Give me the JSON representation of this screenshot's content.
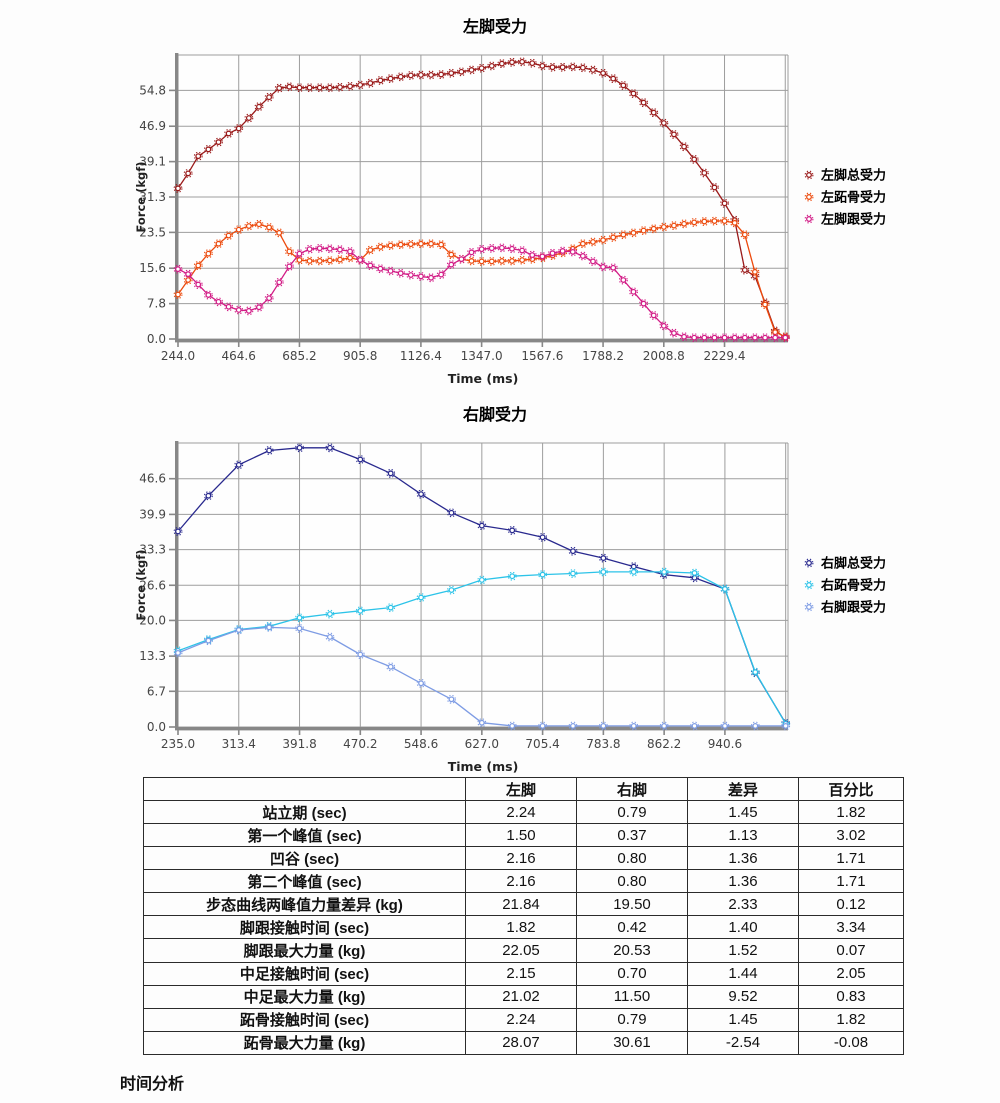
{
  "page": {
    "caption": "时间分析"
  },
  "chart_data": [
    {
      "type": "line",
      "title": "左脚受力",
      "xlabel": "Time (ms)",
      "ylabel": "Force (kgf)",
      "legend_position": "right",
      "grid": true,
      "x_start": 244.0,
      "x_step": 36.77,
      "x_max": 2460,
      "y_max": 62.6,
      "x_tick_labels": [
        "244.0",
        "464.6",
        "685.2",
        "905.8",
        "1126.4",
        "1347.0",
        "1567.6",
        "1788.2",
        "2008.8",
        "2229.4"
      ],
      "x_tick_values": [
        244.0,
        464.6,
        685.2,
        905.8,
        1126.4,
        1347.0,
        1567.6,
        1788.2,
        2008.8,
        2229.4
      ],
      "y_tick_labels": [
        "0.0",
        "7.8",
        "15.6",
        "23.5",
        "31.3",
        "39.1",
        "46.9",
        "54.8"
      ],
      "y_tick_values": [
        0.0,
        7.8,
        15.6,
        23.5,
        31.3,
        39.1,
        46.9,
        54.8
      ],
      "series": [
        {
          "name": "左脚总受力",
          "color": "#9a1a1a",
          "values": [
            33.2,
            36.5,
            40.3,
            41.8,
            43.4,
            45.3,
            46.4,
            48.7,
            51.2,
            53.3,
            55.3,
            55.6,
            55.4,
            55.4,
            55.4,
            55.4,
            55.5,
            55.7,
            56.0,
            56.4,
            57.0,
            57.4,
            57.8,
            58.1,
            58.2,
            58.2,
            58.3,
            58.6,
            58.9,
            59.3,
            59.7,
            60.2,
            60.7,
            61.0,
            61.1,
            60.8,
            60.2,
            59.9,
            59.9,
            60.0,
            59.8,
            59.3,
            58.6,
            57.4,
            55.9,
            54.1,
            52.1,
            49.9,
            47.6,
            45.1,
            42.4,
            39.6,
            36.6,
            33.4,
            29.9,
            26.2,
            15.2,
            13.9,
            8.0,
            1.8,
            0.3
          ]
        },
        {
          "name": "左跖骨受力",
          "color": "#ec4a0d",
          "values": [
            9.8,
            13.0,
            16.2,
            18.8,
            21.0,
            22.8,
            24.1,
            24.9,
            25.3,
            24.6,
            23.4,
            19.3,
            17.4,
            17.2,
            17.2,
            17.3,
            17.5,
            17.9,
            17.4,
            19.6,
            20.3,
            20.6,
            20.8,
            20.9,
            21.0,
            21.0,
            20.8,
            18.6,
            17.6,
            17.2,
            17.1,
            17.1,
            17.2,
            17.2,
            17.4,
            17.6,
            17.9,
            18.4,
            19.0,
            19.9,
            21.0,
            21.4,
            21.8,
            22.4,
            23.0,
            23.4,
            23.9,
            24.3,
            24.7,
            25.0,
            25.4,
            25.7,
            25.9,
            26.0,
            26.0,
            25.6,
            23.0,
            14.8,
            7.6,
            1.5,
            0.5
          ]
        },
        {
          "name": "左脚跟受力",
          "color": "#d21c86",
          "values": [
            15.4,
            14.3,
            12.0,
            9.7,
            8.2,
            7.1,
            6.4,
            6.2,
            7.0,
            9.0,
            12.5,
            16.0,
            18.8,
            19.8,
            20.0,
            19.9,
            19.7,
            19.3,
            17.4,
            16.2,
            15.5,
            15.0,
            14.5,
            14.1,
            13.8,
            13.5,
            14.2,
            16.4,
            17.6,
            19.1,
            19.8,
            20.0,
            20.1,
            19.9,
            19.5,
            18.5,
            18.2,
            18.9,
            19.4,
            19.2,
            18.3,
            17.1,
            15.9,
            15.7,
            13.0,
            10.4,
            7.8,
            5.2,
            2.9,
            1.3,
            0.5,
            0.3,
            0.3,
            0.3,
            0.3,
            0.3,
            0.3,
            0.3,
            0.3,
            0.3,
            0.3
          ]
        }
      ]
    },
    {
      "type": "line",
      "title": "右脚受力",
      "xlabel": "Time (ms)",
      "ylabel": "Force (kgf)",
      "legend_position": "right",
      "grid": true,
      "x_start": 235.0,
      "x_step": 39.2,
      "x_max": 1022,
      "y_max": 53.3,
      "x_tick_labels": [
        "235.0",
        "313.4",
        "391.8",
        "470.2",
        "548.6",
        "627.0",
        "705.4",
        "783.8",
        "862.2",
        "940.6"
      ],
      "x_tick_values": [
        235.0,
        313.4,
        391.8,
        470.2,
        548.6,
        627.0,
        705.4,
        783.8,
        862.2,
        940.6
      ],
      "y_tick_labels": [
        "0.0",
        "6.7",
        "13.3",
        "20.0",
        "26.6",
        "33.3",
        "39.9",
        "46.6"
      ],
      "y_tick_values": [
        0.0,
        6.7,
        13.3,
        20.0,
        26.6,
        33.3,
        39.9,
        46.6
      ],
      "series": [
        {
          "name": "右脚总受力",
          "color": "#29298e",
          "values": [
            36.7,
            43.4,
            49.2,
            51.9,
            52.4,
            52.4,
            50.2,
            47.6,
            43.7,
            40.2,
            37.8,
            36.9,
            35.6,
            33.0,
            31.7,
            30.1,
            28.6,
            28.0,
            25.9,
            10.2,
            0.7
          ]
        },
        {
          "name": "右跖骨受力",
          "color": "#2cc3e8",
          "values": [
            14.3,
            16.4,
            18.3,
            18.9,
            20.5,
            21.2,
            21.8,
            22.4,
            24.3,
            25.7,
            27.6,
            28.3,
            28.6,
            28.8,
            29.1,
            29.1,
            29.1,
            28.9,
            25.9,
            10.3,
            0.6
          ]
        },
        {
          "name": "右脚跟受力",
          "color": "#7e9ce4",
          "values": [
            13.9,
            16.2,
            18.2,
            18.7,
            18.5,
            16.9,
            13.6,
            11.3,
            8.2,
            5.2,
            0.8,
            0.2,
            0.2,
            0.2,
            0.2,
            0.2,
            0.2,
            0.2,
            0.2,
            0.2,
            0.2
          ]
        }
      ]
    }
  ],
  "table": {
    "headers": [
      "",
      "左脚",
      "右脚",
      "差异",
      "百分比"
    ],
    "rows": [
      {
        "label": "站立期 (sec)",
        "values": [
          "2.24",
          "0.79",
          "1.45",
          "1.82"
        ]
      },
      {
        "label": "第一个峰值 (sec)",
        "values": [
          "1.50",
          "0.37",
          "1.13",
          "3.02"
        ]
      },
      {
        "label": "凹谷 (sec)",
        "values": [
          "2.16",
          "0.80",
          "1.36",
          "1.71"
        ]
      },
      {
        "label": "第二个峰值 (sec)",
        "values": [
          "2.16",
          "0.80",
          "1.36",
          "1.71"
        ]
      },
      {
        "label": "步态曲线两峰值力量差异 (kg)",
        "values": [
          "21.84",
          "19.50",
          "2.33",
          "0.12"
        ]
      },
      {
        "label": "脚跟接触时间 (sec)",
        "values": [
          "1.82",
          "0.42",
          "1.40",
          "3.34"
        ]
      },
      {
        "label": "脚跟最大力量 (kg)",
        "values": [
          "22.05",
          "20.53",
          "1.52",
          "0.07"
        ]
      },
      {
        "label": "中足接触时间 (sec)",
        "values": [
          "2.15",
          "0.70",
          "1.44",
          "2.05"
        ]
      },
      {
        "label": "中足最大力量 (kg)",
        "values": [
          "21.02",
          "11.50",
          "9.52",
          "0.83"
        ]
      },
      {
        "label": "跖骨接触时间 (sec)",
        "values": [
          "2.24",
          "0.79",
          "1.45",
          "1.82"
        ]
      },
      {
        "label": "跖骨最大力量 (kg)",
        "values": [
          "28.07",
          "30.61",
          "-2.54",
          "-0.08"
        ]
      }
    ]
  }
}
